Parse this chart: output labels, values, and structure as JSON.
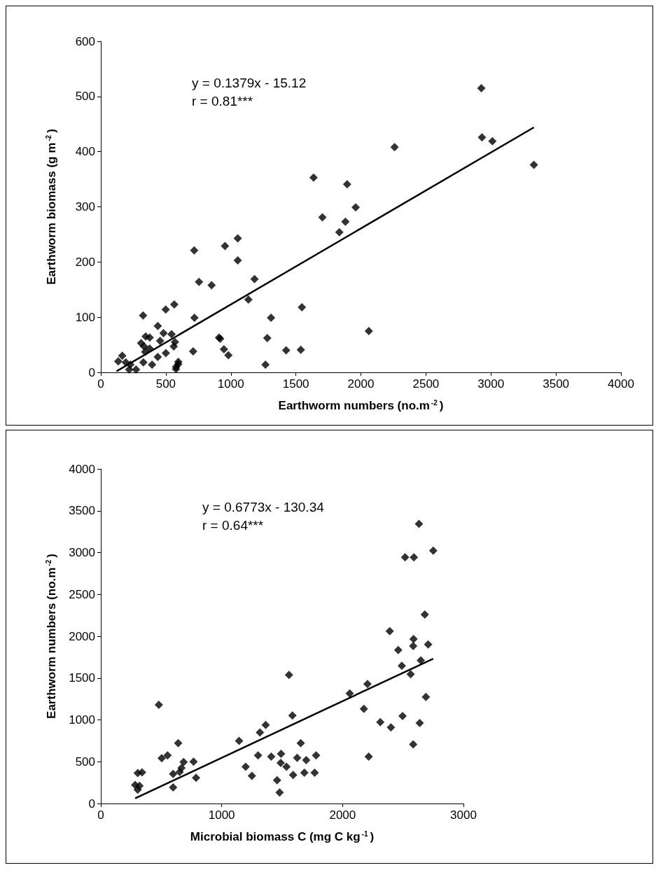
{
  "chart_data": [
    {
      "type": "scatter",
      "xlabel": "Earthworm numbers (no.m$^{-2}$)",
      "ylabel": "Earthworm biomass (g m$^{-2}$)",
      "annotations": [
        "y = 0.1379x - 15.12",
        "r = 0.81***"
      ],
      "xlim": [
        0,
        4000
      ],
      "xticks": [
        0,
        500,
        1000,
        1500,
        2000,
        2500,
        3000,
        3500,
        4000
      ],
      "ylim": [
        0,
        600
      ],
      "yticks": [
        0,
        100,
        200,
        300,
        400,
        500,
        600
      ],
      "marker": "diamond",
      "series": [
        {
          "type": "scatter",
          "color": "#000000",
          "x": [
            2926,
            2931,
            3011,
            3330,
            2259,
            1636,
            1894,
            1960,
            1704,
            1881,
            1834,
            2061,
            718,
            955,
            1053,
            1053,
            755,
            852,
            1182,
            1135,
            1546,
            1309,
            720,
            325,
            499,
            565,
            438,
            918,
            947,
            981,
            1280,
            1425,
            1538,
            1266,
            710,
            596,
            578,
            482,
            544,
            345,
            376,
            310,
            570,
            561,
            456,
            500,
            438,
            376,
            332,
            341,
            327,
            394,
            165,
            134,
            192,
            227,
            218,
            271,
            596,
            579,
            909
          ],
          "values": [
            515,
            426,
            419,
            376,
            408,
            353,
            341,
            299,
            281,
            273,
            254,
            75,
            221,
            229,
            243,
            203,
            164,
            158,
            169,
            132,
            118,
            99,
            99,
            103,
            114,
            123,
            84,
            61,
            42,
            31,
            62,
            40,
            41,
            14,
            38,
            15,
            6,
            71,
            69,
            65,
            63,
            53,
            55,
            47,
            57,
            35,
            28,
            43,
            47,
            37,
            18,
            14,
            30,
            20,
            18,
            14,
            5,
            5,
            19,
            10,
            63
          ]
        },
        {
          "type": "line",
          "marker": "none",
          "color": "#000000",
          "x": [
            121,
            3330
          ],
          "values": [
            2,
            444
          ]
        }
      ]
    },
    {
      "type": "scatter",
      "xlabel": "Microbial biomass C (mg C kg$^{-1}$)",
      "ylabel": "Earthworm numbers (no.m$^{-2}$)",
      "annotations": [
        "y = 0.6773x - 130.34",
        "r = 0.64***"
      ],
      "xlim": [
        0,
        3000
      ],
      "xticks": [
        0,
        1000,
        2000,
        3000
      ],
      "ylim": [
        0,
        4000
      ],
      "yticks": [
        0,
        500,
        1000,
        1500,
        2000,
        2500,
        3000,
        3500,
        4000
      ],
      "marker": "diamond",
      "series": [
        {
          "type": "scatter",
          "color": "#000000",
          "x": [
            2632,
            2517,
            2590,
            2750,
            2680,
            2390,
            2460,
            2587,
            2584,
            2708,
            2490,
            2647,
            2563,
            2689,
            2496,
            2638,
            2584,
            2312,
            2400,
            2176,
            2206,
            2059,
            2216,
            1557,
            1585,
            1364,
            1316,
            1144,
            1654,
            1301,
            1410,
            1491,
            1198,
            1250,
            1488,
            1536,
            1624,
            1699,
            1781,
            1591,
            1684,
            1769,
            1458,
            1479,
            480,
            504,
            552,
            640,
            598,
            598,
            685,
            667,
            652,
            767,
            788,
            305,
            341,
            284,
            320,
            305
          ],
          "values": [
            3344,
            2943,
            2943,
            3024,
            2259,
            2061,
            1835,
            1967,
            1882,
            1901,
            1646,
            1712,
            1547,
            1274,
            1047,
            962,
            708,
            972,
            910,
            1132,
            1429,
            1316,
            561,
            1538,
            1052,
            939,
            849,
            750,
            722,
            575,
            561,
            594,
            439,
            330,
            486,
            439,
            547,
            519,
            575,
            340,
            368,
            368,
            278,
            132,
            1179,
            542,
            575,
            722,
            354,
            193,
            495,
            425,
            377,
            500,
            307,
            363,
            373,
            222,
            212,
            165
          ]
        },
        {
          "type": "line",
          "marker": "none",
          "color": "#000000",
          "x": [
            284,
            2750
          ],
          "values": [
            62,
            1732
          ]
        }
      ]
    }
  ]
}
